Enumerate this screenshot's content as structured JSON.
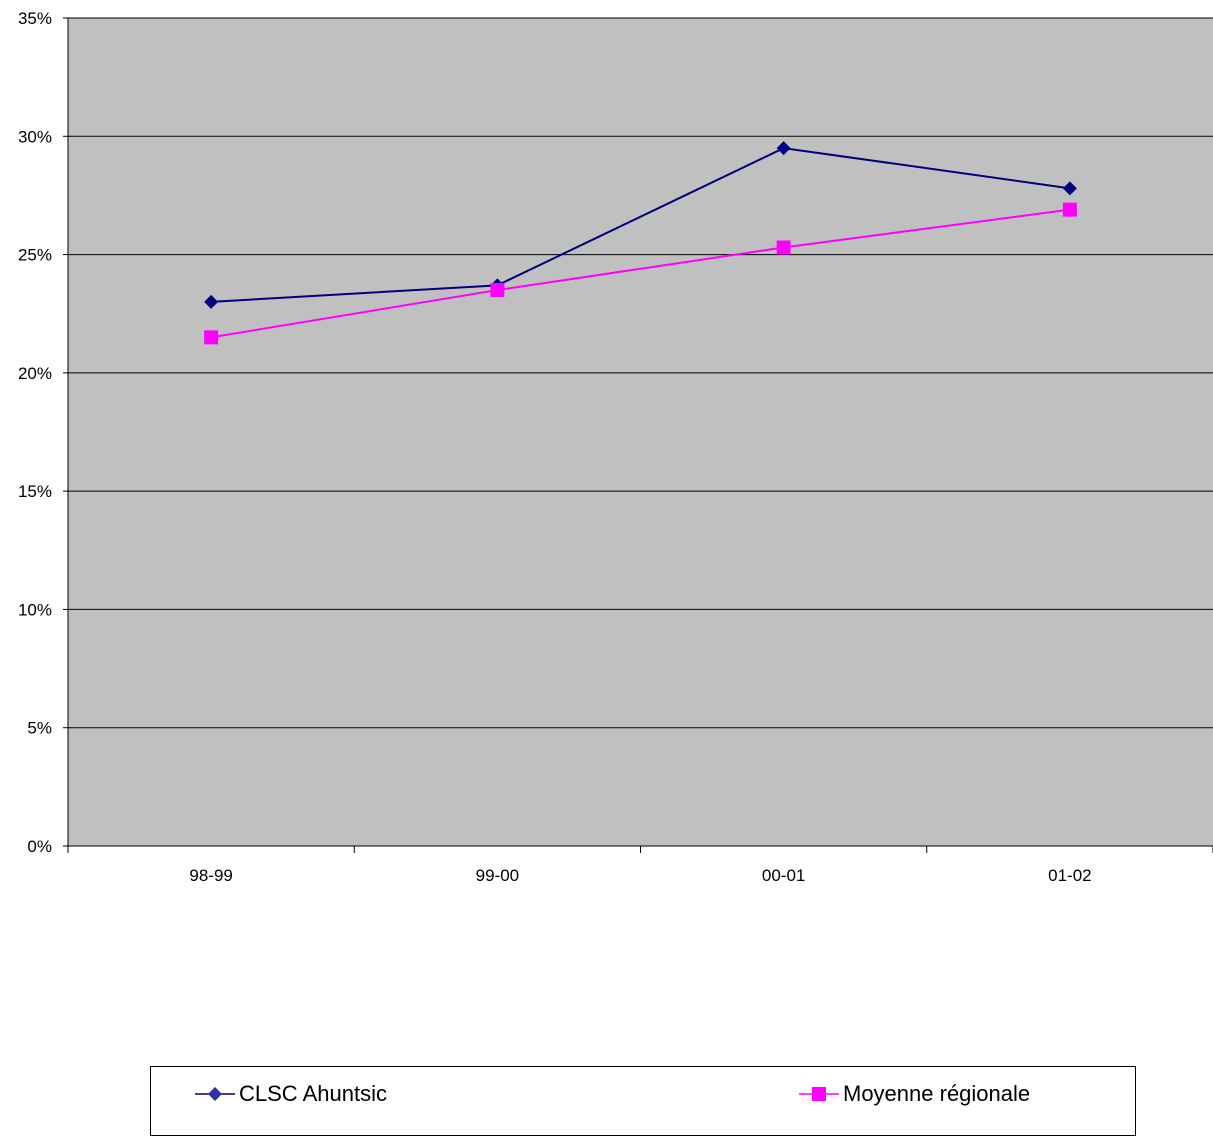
{
  "chart_data": {
    "type": "line",
    "title": "",
    "xlabel": "",
    "ylabel": "",
    "categories": [
      "98-99",
      "99-00",
      "00-01",
      "01-02"
    ],
    "y_ticks": [
      "0%",
      "5%",
      "10%",
      "15%",
      "20%",
      "25%",
      "30%",
      "35%"
    ],
    "ylim": [
      0,
      35
    ],
    "grid": true,
    "legend_position": "bottom",
    "plot_background": "#C0C0C0",
    "series": [
      {
        "name": "CLSC Ahuntsic",
        "values": [
          23.0,
          23.7,
          29.5,
          27.8
        ],
        "color": "#000080",
        "marker": "diamond",
        "legend_marker_color": "#3333A0"
      },
      {
        "name": "Moyenne régionale",
        "values": [
          21.5,
          23.5,
          25.3,
          26.9
        ],
        "color": "#FF00FF",
        "marker": "square",
        "legend_marker_color": "#FF00FF"
      }
    ]
  }
}
